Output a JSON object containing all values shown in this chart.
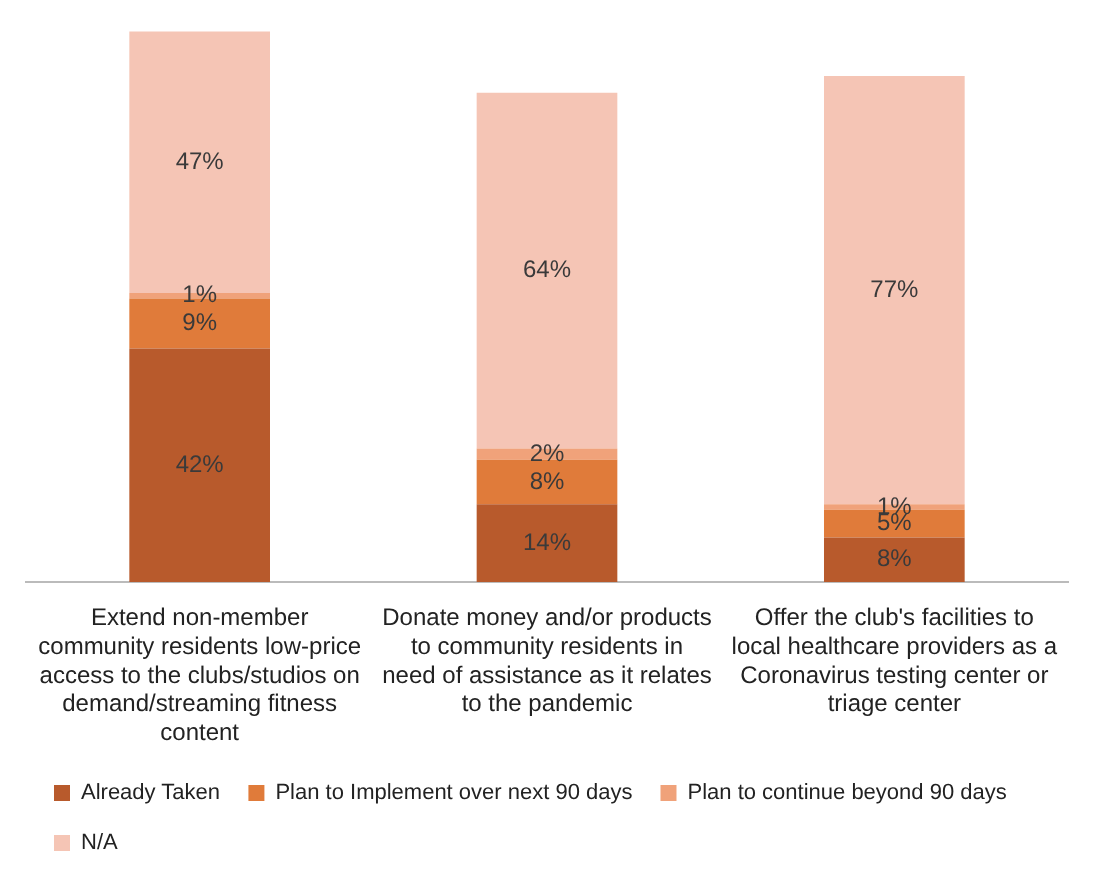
{
  "chart_data": {
    "type": "bar",
    "stacked": true,
    "legend": "bottom",
    "grid": false,
    "categories": [
      "Extend non-member community residents low-price access to the clubs/studios on demand/streaming fitness content",
      "Donate money and/or products to community residents in need of assistance as it relates to the pandemic",
      "Offer the club's facilities to local healthcare providers as a Coronavirus testing center or triage center"
    ],
    "series": [
      {
        "name": "Already Taken",
        "color": "#b85a2c",
        "values": [
          42,
          14,
          8
        ],
        "value_labels": [
          "42%",
          "14%",
          "8%"
        ]
      },
      {
        "name": "Plan to Implement over next 90 days",
        "color": "#e07b3a",
        "values": [
          9,
          8,
          5
        ],
        "value_labels": [
          "9%",
          "8%",
          "5%"
        ]
      },
      {
        "name": "Plan to continue beyond 90 days",
        "color": "#f0a27a",
        "values": [
          1,
          2,
          1
        ],
        "value_labels": [
          "1%",
          "2%",
          "1%"
        ]
      },
      {
        "name": "N/A",
        "color": "#f5c5b5",
        "values": [
          47,
          64,
          77
        ],
        "value_labels": [
          "47%",
          "64%",
          "77%"
        ]
      }
    ]
  }
}
